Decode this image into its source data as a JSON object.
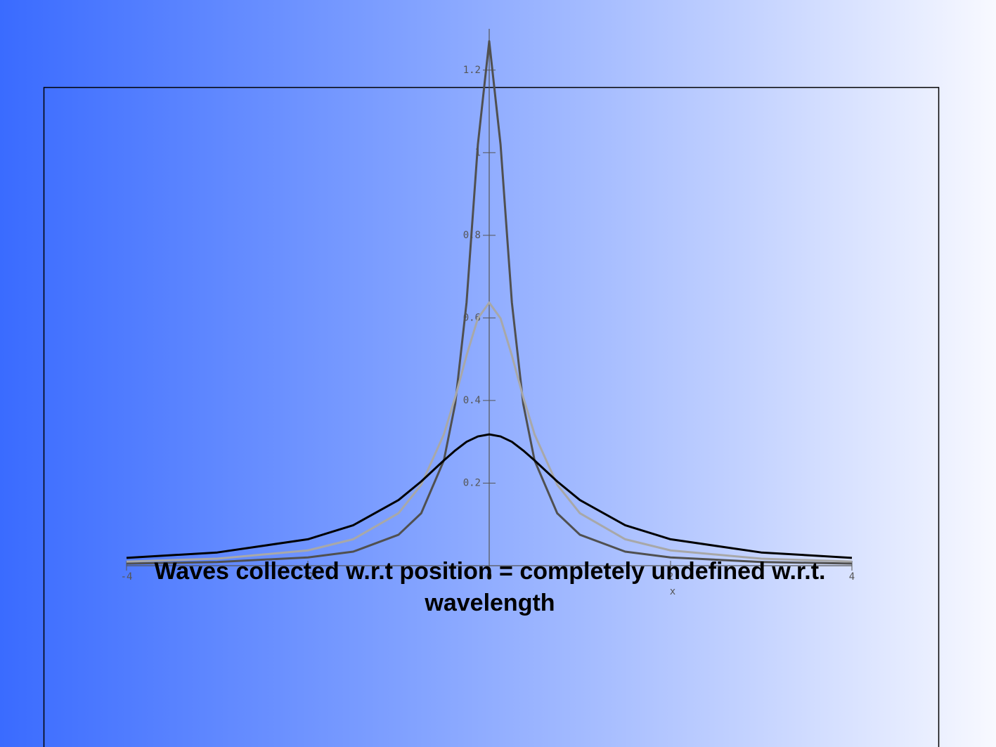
{
  "chart_data": {
    "type": "line",
    "x_label": "x",
    "x": [
      -4,
      -3,
      -2,
      -1.5,
      -1,
      -0.75,
      -0.5,
      -0.375,
      -0.25,
      -0.125,
      0,
      0.125,
      0.25,
      0.375,
      0.5,
      0.75,
      1,
      1.5,
      2,
      3,
      4
    ],
    "series": [
      {
        "color": "#505050",
        "values": [
          0.005,
          0.009,
          0.02,
          0.034,
          0.075,
          0.127,
          0.255,
          0.392,
          0.637,
          1.02,
          1.27,
          1.02,
          0.637,
          0.392,
          0.255,
          0.127,
          0.075,
          0.034,
          0.02,
          0.009,
          0.005
        ]
      },
      {
        "color": "#a8a8a8",
        "values": [
          0.01,
          0.017,
          0.037,
          0.064,
          0.127,
          0.196,
          0.318,
          0.408,
          0.509,
          0.599,
          0.637,
          0.599,
          0.509,
          0.408,
          0.318,
          0.196,
          0.127,
          0.064,
          0.037,
          0.017,
          0.01
        ]
      },
      {
        "color": "#000000",
        "values": [
          0.019,
          0.032,
          0.064,
          0.098,
          0.159,
          0.204,
          0.255,
          0.279,
          0.3,
          0.313,
          0.318,
          0.313,
          0.3,
          0.279,
          0.255,
          0.204,
          0.159,
          0.098,
          0.064,
          0.032,
          0.019
        ]
      }
    ],
    "xlim": [
      -4,
      4
    ],
    "xticks": [
      -4,
      -2,
      0,
      2,
      4
    ],
    "ylim": [
      0,
      1.3
    ],
    "yticks": [
      0.2,
      0.4,
      0.6,
      0.8,
      1,
      1.2
    ],
    "grid": false
  },
  "caption": [
    "Waves collected w.r.t position = completely undefined w.r.t.",
    "wavelength"
  ]
}
